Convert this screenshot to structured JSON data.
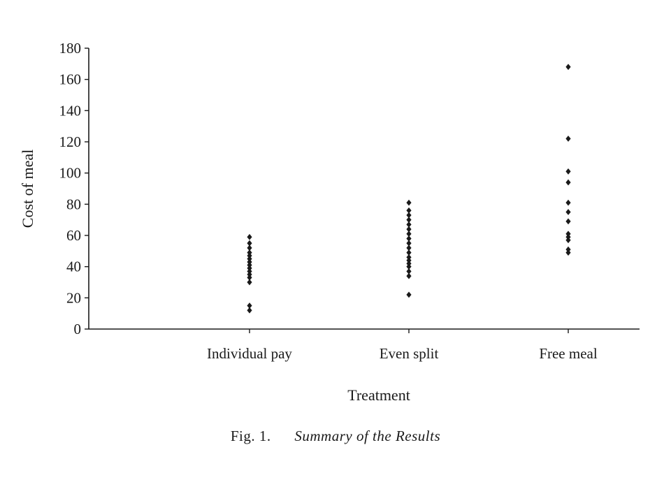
{
  "chart_data": {
    "type": "scatter",
    "title": "Summary of the Results",
    "xlabel": "Treatment",
    "ylabel": "Cost of meal",
    "ylim": [
      0,
      180
    ],
    "yticks": [
      "0",
      "20",
      "40",
      "60",
      "80",
      "100",
      "120",
      "140",
      "160",
      "180"
    ],
    "categories": [
      "Individual pay",
      "Even split",
      "Free meal"
    ],
    "grid": false,
    "legend": "none",
    "points": [
      {
        "category": "Individual pay",
        "values": [
          12,
          15,
          30,
          33,
          35,
          37,
          39,
          41,
          43,
          45,
          47,
          49,
          52,
          55,
          59
        ]
      },
      {
        "category": "Even split",
        "values": [
          22,
          34,
          37,
          40,
          42,
          44,
          46,
          49,
          52,
          55,
          58,
          61,
          64,
          67,
          70,
          73,
          76,
          81
        ]
      },
      {
        "category": "Free meal",
        "values": [
          49,
          51,
          57,
          59,
          61,
          69,
          75,
          81,
          94,
          101,
          122,
          168
        ]
      }
    ],
    "marker_color": "#1a1a1a"
  },
  "caption": {
    "label": "Fig. 1.",
    "title": "Summary of the Results"
  }
}
